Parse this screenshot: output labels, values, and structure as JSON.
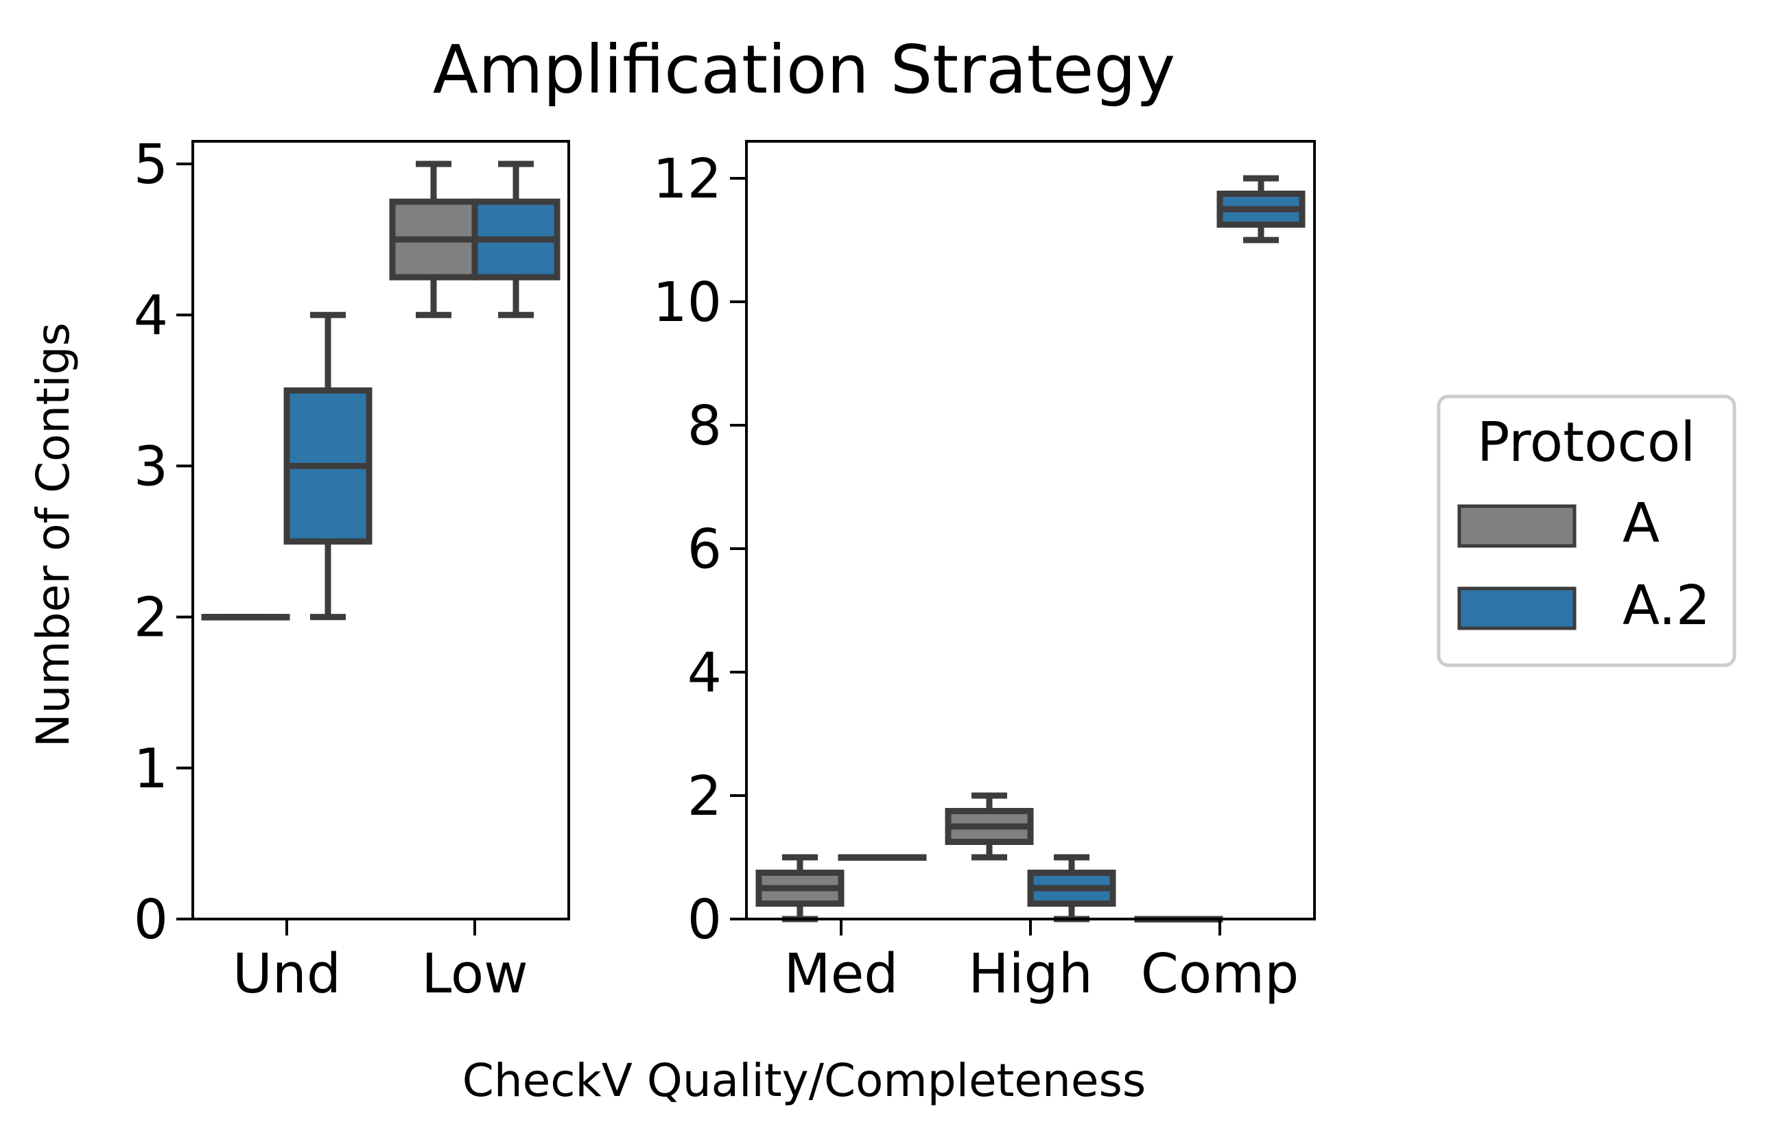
{
  "chart_data": {
    "type": "box",
    "title": "Amplification Strategy",
    "xlabel": "CheckV Quality/Completeness",
    "ylabel": "Number of Contigs",
    "legend": {
      "title": "Protocol",
      "placement": "center-right",
      "entries": [
        {
          "name": "A",
          "color": "#808080"
        },
        {
          "name": "A.2",
          "color": "#2e75a8"
        }
      ]
    },
    "grid": false,
    "panels": [
      {
        "categories": [
          "Und",
          "Low"
        ],
        "ylim": [
          0,
          5.15
        ],
        "yticks": [
          0,
          1,
          2,
          3,
          4,
          5
        ],
        "series": [
          {
            "name": "A",
            "boxes": [
              {
                "min": 2,
                "q1": 2,
                "median": 2,
                "q3": 2,
                "max": 2
              },
              {
                "min": 4,
                "q1": 4.25,
                "median": 4.5,
                "q3": 4.75,
                "max": 5
              }
            ]
          },
          {
            "name": "A.2",
            "boxes": [
              {
                "min": 2,
                "q1": 2.5,
                "median": 3,
                "q3": 3.5,
                "max": 4
              },
              {
                "min": 4,
                "q1": 4.25,
                "median": 4.5,
                "q3": 4.75,
                "max": 5
              }
            ]
          }
        ]
      },
      {
        "categories": [
          "Med",
          "High",
          "Comp"
        ],
        "ylim": [
          0,
          12.6
        ],
        "yticks": [
          0,
          2,
          4,
          6,
          8,
          10,
          12
        ],
        "series": [
          {
            "name": "A",
            "boxes": [
              {
                "min": 0,
                "q1": 0.25,
                "median": 0.5,
                "q3": 0.75,
                "max": 1
              },
              {
                "min": 1,
                "q1": 1.25,
                "median": 1.5,
                "q3": 1.75,
                "max": 2
              },
              {
                "min": 0,
                "q1": 0,
                "median": 0,
                "q3": 0,
                "max": 0
              }
            ]
          },
          {
            "name": "A.2",
            "boxes": [
              {
                "min": 1,
                "q1": 1,
                "median": 1,
                "q3": 1,
                "max": 1
              },
              {
                "min": 0,
                "q1": 0.25,
                "median": 0.5,
                "q3": 0.75,
                "max": 1
              },
              {
                "min": 11,
                "q1": 11.25,
                "median": 11.5,
                "q3": 11.75,
                "max": 12
              }
            ]
          }
        ]
      }
    ]
  }
}
